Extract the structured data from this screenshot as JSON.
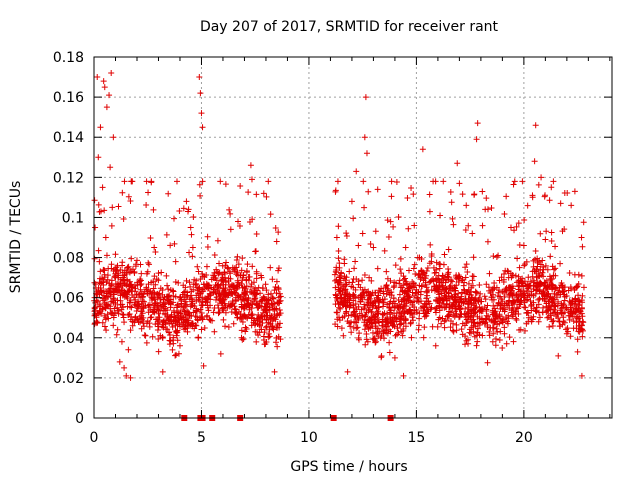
{
  "chart_data": {
    "type": "scatter",
    "title": "Day 207 of 2017, SRMTID for receiver rant",
    "xlabel": "GPS time / hours",
    "ylabel": "SRMTID / TECUs",
    "xlim": [
      0,
      24.1
    ],
    "ylim": [
      0,
      0.18
    ],
    "x_ticks": [
      0,
      5,
      10,
      15,
      20
    ],
    "x_tick_labels": [
      "0",
      "5",
      "10",
      "15",
      "20"
    ],
    "y_ticks": [
      0,
      0.02,
      0.04,
      0.06,
      0.08,
      0.1,
      0.12,
      0.14,
      0.16,
      0.18
    ],
    "y_tick_labels": [
      "0",
      "0.02",
      "0.04",
      "0.06",
      "0.08",
      "0.1",
      "0.12",
      "0.14",
      "0.16",
      "0.18"
    ],
    "grid": true,
    "marker": "+",
    "series": [
      {
        "name": "SRMTID",
        "color": "#e00000",
        "data_coverage_hours": [
          [
            0.0,
            8.7
          ],
          [
            11.2,
            22.8
          ]
        ],
        "typical_range": [
          0.02,
          0.1
        ],
        "sample_points": [
          [
            0.05,
            0.095
          ],
          [
            0.1,
            0.062
          ],
          [
            0.15,
            0.17
          ],
          [
            0.2,
            0.13
          ],
          [
            0.25,
            0.078
          ],
          [
            0.3,
            0.145
          ],
          [
            0.4,
            0.115
          ],
          [
            0.45,
            0.168
          ],
          [
            0.5,
            0.165
          ],
          [
            0.55,
            0.09
          ],
          [
            0.6,
            0.155
          ],
          [
            0.7,
            0.161
          ],
          [
            0.75,
            0.125
          ],
          [
            0.8,
            0.172
          ],
          [
            0.85,
            0.105
          ],
          [
            0.9,
            0.14
          ],
          [
            1.0,
            0.07
          ],
          [
            1.1,
            0.044
          ],
          [
            1.2,
            0.028
          ],
          [
            1.3,
            0.038
          ],
          [
            1.4,
            0.025
          ],
          [
            1.5,
            0.021
          ],
          [
            1.6,
            0.034
          ],
          [
            1.7,
            0.02
          ],
          [
            1.8,
            0.046
          ],
          [
            2.0,
            0.056
          ],
          [
            2.2,
            0.072
          ],
          [
            2.4,
            0.041
          ],
          [
            2.6,
            0.062
          ],
          [
            2.8,
            0.085
          ],
          [
            3.0,
            0.052
          ],
          [
            3.2,
            0.023
          ],
          [
            3.4,
            0.066
          ],
          [
            3.6,
            0.049
          ],
          [
            3.8,
            0.078
          ],
          [
            4.0,
            0.036
          ],
          [
            4.2,
            0.059
          ],
          [
            4.3,
            0.108
          ],
          [
            4.4,
            0.104
          ],
          [
            4.5,
            0.095
          ],
          [
            4.6,
            0.085
          ],
          [
            4.8,
            0.065
          ],
          [
            4.9,
            0.17
          ],
          [
            4.95,
            0.162
          ],
          [
            5.0,
            0.152
          ],
          [
            5.05,
            0.145
          ],
          [
            5.1,
            0.026
          ],
          [
            5.3,
            0.055
          ],
          [
            5.6,
            0.043
          ],
          [
            5.9,
            0.032
          ],
          [
            6.2,
            0.061
          ],
          [
            6.5,
            0.047
          ],
          [
            6.7,
            0.098
          ],
          [
            6.9,
            0.039
          ],
          [
            7.1,
            0.069
          ],
          [
            7.3,
            0.126
          ],
          [
            7.35,
            0.119
          ],
          [
            7.5,
            0.083
          ],
          [
            7.7,
            0.056
          ],
          [
            7.9,
            0.112
          ],
          [
            8.0,
            0.045
          ],
          [
            8.2,
            0.075
          ],
          [
            8.4,
            0.023
          ],
          [
            8.5,
            0.088
          ],
          [
            8.6,
            0.06
          ],
          [
            11.3,
            0.09
          ],
          [
            11.4,
            0.055
          ],
          [
            11.5,
            0.072
          ],
          [
            11.6,
            0.041
          ],
          [
            11.7,
            0.064
          ],
          [
            11.8,
            0.023
          ],
          [
            12.0,
            0.108
          ],
          [
            12.1,
            0.048
          ],
          [
            12.2,
            0.123
          ],
          [
            12.3,
            0.086
          ],
          [
            12.5,
            0.092
          ],
          [
            12.6,
            0.14
          ],
          [
            12.65,
            0.16
          ],
          [
            12.7,
            0.132
          ],
          [
            12.8,
            0.07
          ],
          [
            12.9,
            0.053
          ],
          [
            13.0,
            0.085
          ],
          [
            13.2,
            0.114
          ],
          [
            13.4,
            0.046
          ],
          [
            13.6,
            0.073
          ],
          [
            13.8,
            0.058
          ],
          [
            14.0,
            0.03
          ],
          [
            14.2,
            0.067
          ],
          [
            14.4,
            0.021
          ],
          [
            14.5,
            0.085
          ],
          [
            14.7,
            0.052
          ],
          [
            14.9,
            0.096
          ],
          [
            15.1,
            0.044
          ],
          [
            15.3,
            0.134
          ],
          [
            15.5,
            0.061
          ],
          [
            15.7,
            0.078
          ],
          [
            15.9,
            0.036
          ],
          [
            16.1,
            0.101
          ],
          [
            16.3,
            0.055
          ],
          [
            16.5,
            0.084
          ],
          [
            16.7,
            0.047
          ],
          [
            16.9,
            0.127
          ],
          [
            17.0,
            0.117
          ],
          [
            17.2,
            0.066
          ],
          [
            17.4,
            0.039
          ],
          [
            17.6,
            0.092
          ],
          [
            17.8,
            0.139
          ],
          [
            17.85,
            0.147
          ],
          [
            18.0,
            0.058
          ],
          [
            18.2,
            0.104
          ],
          [
            18.4,
            0.072
          ],
          [
            18.6,
            0.045
          ],
          [
            18.8,
            0.081
          ],
          [
            19.0,
            0.063
          ],
          [
            19.2,
            0.037
          ],
          [
            19.4,
            0.095
          ],
          [
            19.6,
            0.052
          ],
          [
            19.8,
            0.075
          ],
          [
            20.0,
            0.086
          ],
          [
            20.2,
            0.048
          ],
          [
            20.4,
            0.111
          ],
          [
            20.5,
            0.128
          ],
          [
            20.55,
            0.146
          ],
          [
            20.7,
            0.067
          ],
          [
            20.8,
            0.12
          ],
          [
            21.0,
            0.089
          ],
          [
            21.2,
            0.056
          ],
          [
            21.4,
            0.074
          ],
          [
            21.6,
            0.031
          ],
          [
            21.8,
            0.066
          ],
          [
            22.0,
            0.042
          ],
          [
            22.2,
            0.106
          ],
          [
            22.4,
            0.058
          ],
          [
            22.5,
            0.033
          ],
          [
            22.7,
            0.021
          ]
        ]
      },
      {
        "name": "zero-value samples",
        "color": "#e00000",
        "marker": "square",
        "points": [
          [
            4.2,
            0
          ],
          [
            4.95,
            0
          ],
          [
            5.05,
            0
          ],
          [
            5.5,
            0
          ],
          [
            6.8,
            0
          ],
          [
            11.15,
            0
          ],
          [
            13.8,
            0
          ]
        ]
      }
    ]
  }
}
